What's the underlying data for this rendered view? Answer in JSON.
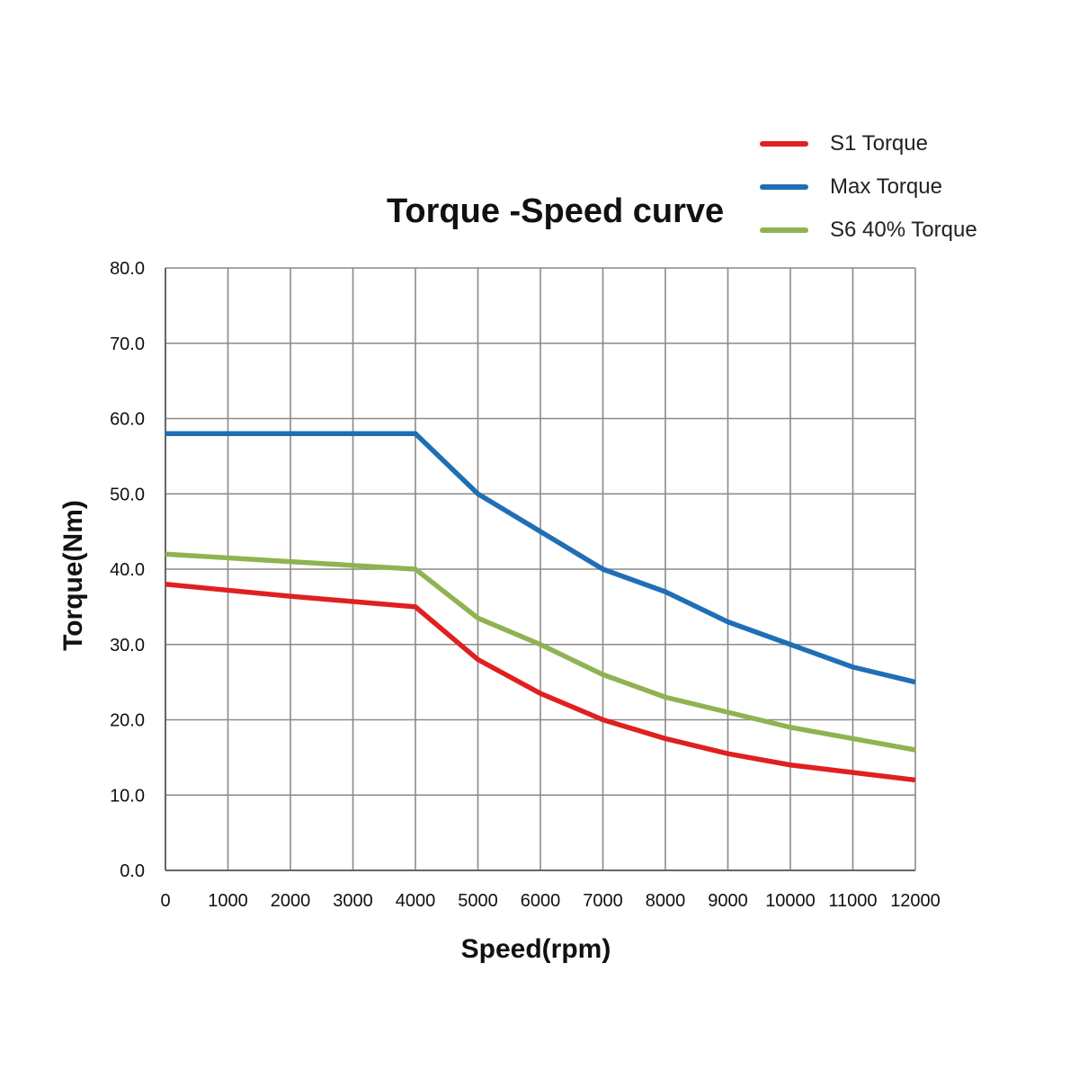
{
  "chart_data": {
    "type": "line",
    "title": "Torque -Speed curve",
    "xlabel": "Speed(rpm)",
    "ylabel": "Torque(Nm)",
    "xlim": [
      0,
      12000
    ],
    "ylim": [
      0,
      80
    ],
    "grid": true,
    "legend_position": "top-right",
    "x": [
      0,
      1000,
      2000,
      3000,
      4000,
      5000,
      6000,
      7000,
      8000,
      9000,
      10000,
      11000,
      12000
    ],
    "x_tick_labels": [
      "0",
      "1000",
      "2000",
      "3000",
      "4000",
      "5000",
      "6000",
      "7000",
      "8000",
      "9000",
      "10000",
      "11000",
      "12000"
    ],
    "y_ticks": [
      0,
      10,
      20,
      30,
      40,
      50,
      60,
      70,
      80
    ],
    "y_tick_labels": [
      "0.0",
      "10.0",
      "20.0",
      "30.0",
      "40.0",
      "50.0",
      "60.0",
      "70.0",
      "80.0"
    ],
    "series": [
      {
        "name": "S1 Torque",
        "color": "#e02020",
        "values": [
          38.0,
          37.2,
          36.4,
          35.7,
          35.0,
          28.0,
          23.5,
          20.0,
          17.5,
          15.5,
          14.0,
          13.0,
          12.0
        ]
      },
      {
        "name": "Max Torque",
        "color": "#1f6fb5",
        "values": [
          58.0,
          58.0,
          58.0,
          58.0,
          58.0,
          50.0,
          45.0,
          40.0,
          37.0,
          33.0,
          30.0,
          27.0,
          25.0
        ]
      },
      {
        "name": "S6 40% Torque",
        "color": "#8fb350",
        "values": [
          42.0,
          41.5,
          41.0,
          40.5,
          40.0,
          33.5,
          30.0,
          26.0,
          23.0,
          21.0,
          19.0,
          17.5,
          16.0
        ]
      }
    ]
  }
}
